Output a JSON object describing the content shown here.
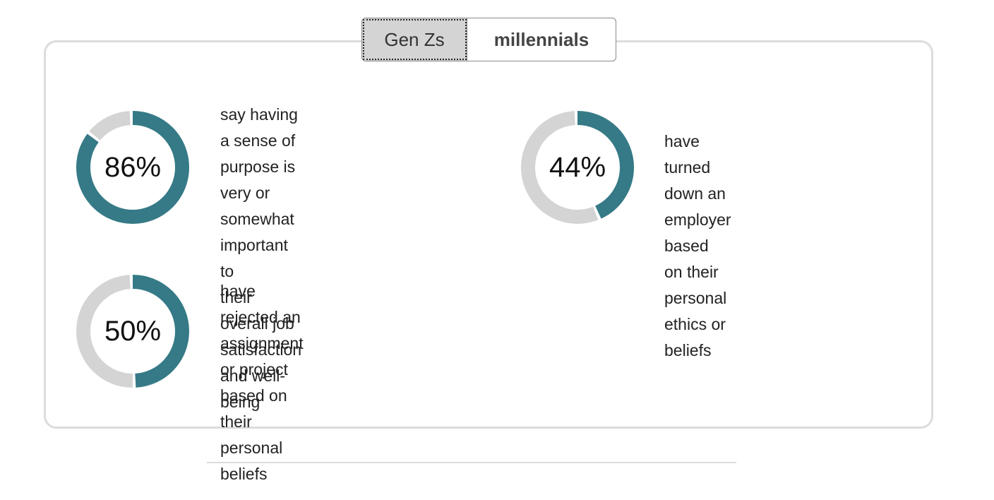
{
  "tabs": [
    {
      "label": "Gen Zs",
      "active": true
    },
    {
      "label": "millennials",
      "active": false
    }
  ],
  "colors": {
    "accent": "#357a86",
    "track": "#d4d4d4",
    "card_border": "#dcdcdc"
  },
  "stats": [
    {
      "percent": 86,
      "label": "86%",
      "text": [
        "say having a sense of",
        "purpose is very or",
        "somewhat important to",
        "their overall job satisfaction",
        "and well-being"
      ]
    },
    {
      "percent": 44,
      "label": "44%",
      "text": [
        "have turned down an",
        "employer based on their",
        "personal ethics or beliefs"
      ]
    },
    {
      "percent": 50,
      "label": "50%",
      "text": [
        "have rejected an",
        "assignment or project",
        "based on their personal",
        "beliefs"
      ]
    }
  ]
}
